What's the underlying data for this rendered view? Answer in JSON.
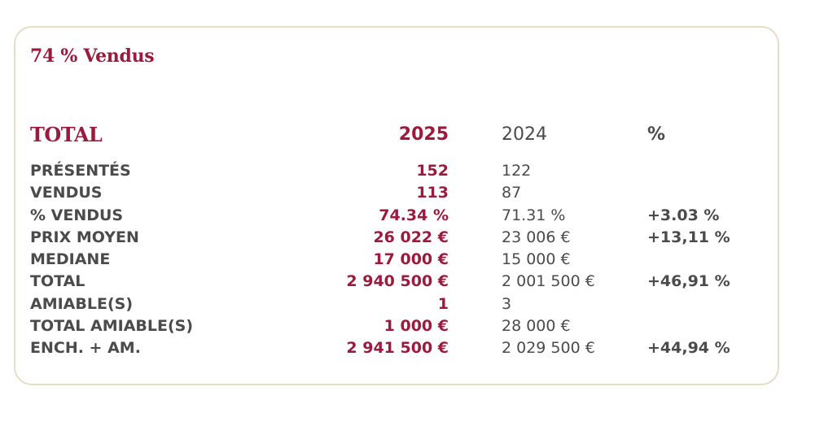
{
  "headline": "74 % Vendus",
  "table": {
    "header": {
      "label": "TOTAL",
      "col_2025": "2025",
      "col_2024": "2024",
      "col_pct": "%"
    },
    "rows": [
      {
        "label": "PRÉSENTÉS",
        "v2025": "152",
        "v2024": "122",
        "pct": ""
      },
      {
        "label": "VENDUS",
        "v2025": "113",
        "v2024": "87",
        "pct": ""
      },
      {
        "label": "% VENDUS",
        "v2025": "74.34 %",
        "v2024": "71.31 %",
        "pct": "+3.03 %"
      },
      {
        "label": "PRIX MOYEN",
        "v2025": "26 022 €",
        "v2024": "23 006 €",
        "pct": "+13,11 %"
      },
      {
        "label": "MEDIANE",
        "v2025": "17 000 €",
        "v2024": "15 000 €",
        "pct": ""
      },
      {
        "label": "TOTAL",
        "v2025": "2 940 500 €",
        "v2024": "2 001 500 €",
        "pct": "+46,91 %"
      },
      {
        "label": "AMIABLE(S)",
        "v2025": "1",
        "v2024": "3",
        "pct": ""
      },
      {
        "label": "TOTAL AMIABLE(S)",
        "v2025": "1 000 €",
        "v2024": "28 000 €",
        "pct": ""
      },
      {
        "label": "ENCH. + AM.",
        "v2025": "2 941 500 €",
        "v2024": "2 029 500 €",
        "pct": "+44,94 %"
      }
    ]
  },
  "colors": {
    "accent": "#9b1b3f",
    "text": "#4b4b4b",
    "card_border": "#e6dcc8"
  }
}
